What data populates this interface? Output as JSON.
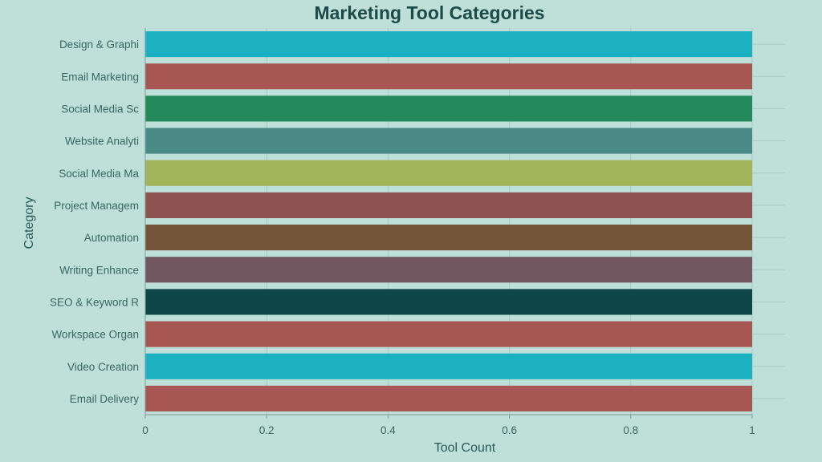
{
  "chart_data": {
    "type": "bar",
    "orientation": "horizontal",
    "title": "Marketing Tool Categories",
    "xlabel": "Tool Count",
    "ylabel": "Category",
    "xlim": [
      0,
      1
    ],
    "xticks": [
      "0",
      "0.2",
      "0.4",
      "0.6",
      "0.8",
      "1"
    ],
    "grid": true,
    "categories": [
      "Design & Graphi",
      "Email Marketing",
      "Social Media Sc",
      "Website Analyti",
      "Social Media Ma",
      "Project Managem",
      "Automation",
      "Writing Enhance",
      "SEO & Keyword R",
      "Workspace Organ",
      "Video Creation",
      "Email Delivery"
    ],
    "values": [
      1,
      1,
      1,
      1,
      1,
      1,
      1,
      1,
      1,
      1,
      1,
      1
    ],
    "colors": [
      "#1cb1c2",
      "#a85653",
      "#25895e",
      "#4a8b88",
      "#a4b45b",
      "#8e5350",
      "#735438",
      "#715660",
      "#0f4748",
      "#a85653",
      "#1cb1c2",
      "#a85653"
    ],
    "background": "#bfe0d8",
    "grid_color": "#a6c9c1"
  }
}
